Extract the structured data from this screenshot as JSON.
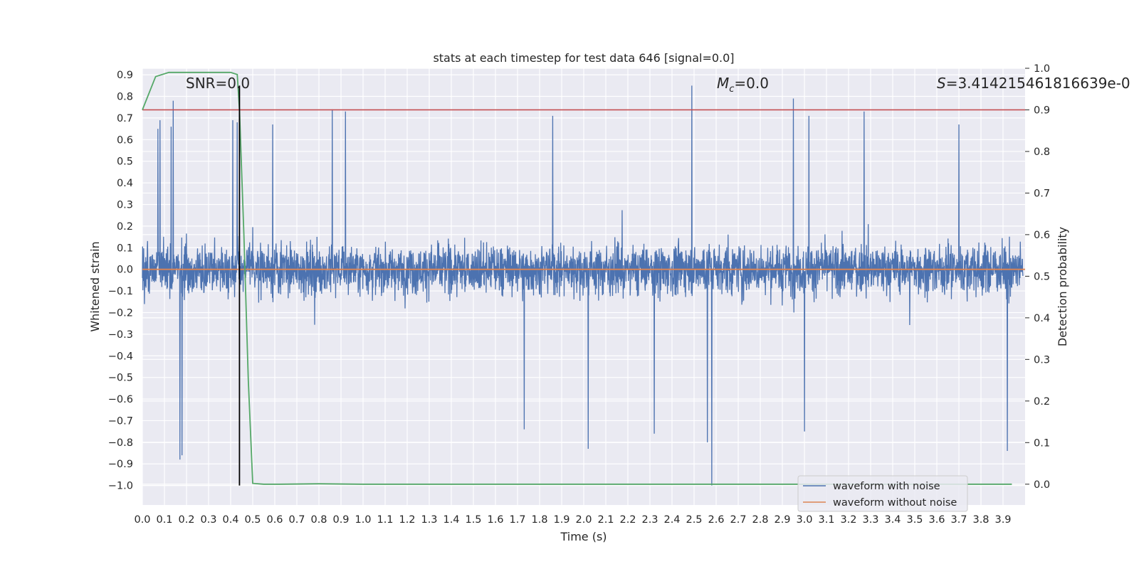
{
  "chart_data": {
    "type": "line",
    "title": "stats at each timestep for test data 646 [signal=0.0]",
    "xlabel": "Time (s)",
    "ylabel_left": "Whitened strain",
    "ylabel_right": "Detection probability",
    "xlim": [
      0.0,
      4.0
    ],
    "ylim_left": [
      -1.09,
      0.93
    ],
    "ylim_right": [
      -0.05,
      1.0
    ],
    "x_ticks": [
      "0.0",
      "0.1",
      "0.2",
      "0.3",
      "0.4",
      "0.5",
      "0.6",
      "0.7",
      "0.8",
      "0.9",
      "1.0",
      "1.1",
      "1.2",
      "1.3",
      "1.4",
      "1.5",
      "1.6",
      "1.7",
      "1.8",
      "1.9",
      "2.0",
      "2.1",
      "2.2",
      "2.3",
      "2.4",
      "2.5",
      "2.6",
      "2.7",
      "2.8",
      "2.9",
      "3.0",
      "3.1",
      "3.2",
      "3.3",
      "3.4",
      "3.5",
      "3.6",
      "3.7",
      "3.8",
      "3.9"
    ],
    "y_ticks_left": [
      "0.9",
      "0.8",
      "0.7",
      "0.6",
      "0.5",
      "0.4",
      "0.3",
      "0.2",
      "0.1",
      "0.0",
      "−0.1",
      "−0.2",
      "−0.3",
      "−0.4",
      "−0.5",
      "−0.6",
      "−0.7",
      "−0.8",
      "−0.9",
      "−1.0"
    ],
    "y_ticks_right": [
      "1.0",
      "0.9",
      "0.8",
      "0.7",
      "0.6",
      "0.5",
      "0.4",
      "0.3",
      "0.2",
      "0.1",
      "0.0"
    ],
    "grid": true,
    "legend_position": "lower-right",
    "annotations": {
      "snr": "SNR=0.0",
      "mc_symbol": "M",
      "mc_sub": "c",
      "mc_value": "=0.0",
      "s_symbol": "S",
      "s_value": "=3.414215461816639e-0"
    },
    "series": [
      {
        "name": "waveform with noise",
        "color": "#4c72b0",
        "description_values": "dense noise, mostly within [-0.5, 0.5] with spikes",
        "spikes": [
          {
            "x": 0.07,
            "y": 0.65
          },
          {
            "x": 0.08,
            "y": 0.69
          },
          {
            "x": 0.13,
            "y": 0.66
          },
          {
            "x": 0.14,
            "y": 0.78
          },
          {
            "x": 0.17,
            "y": -0.88
          },
          {
            "x": 0.18,
            "y": -0.86
          },
          {
            "x": 0.41,
            "y": 0.69
          },
          {
            "x": 0.43,
            "y": 0.68
          },
          {
            "x": 0.59,
            "y": 0.67
          },
          {
            "x": 0.86,
            "y": 0.74
          },
          {
            "x": 0.92,
            "y": 0.73
          },
          {
            "x": 1.86,
            "y": 0.71
          },
          {
            "x": 2.02,
            "y": -0.83
          },
          {
            "x": 2.49,
            "y": 0.85
          },
          {
            "x": 2.56,
            "y": -0.8
          },
          {
            "x": 2.58,
            "y": -1.0
          },
          {
            "x": 2.95,
            "y": 0.79
          },
          {
            "x": 3.0,
            "y": -0.75
          },
          {
            "x": 3.02,
            "y": 0.71
          },
          {
            "x": 3.27,
            "y": 0.73
          },
          {
            "x": 3.7,
            "y": 0.67
          },
          {
            "x": 3.92,
            "y": -0.84
          },
          {
            "x": 1.73,
            "y": -0.74
          },
          {
            "x": 2.32,
            "y": -0.76
          }
        ]
      },
      {
        "name": "waveform without noise",
        "color": "#dd8452",
        "x": [
          0.0,
          4.0
        ],
        "y": [
          0.0,
          0.0
        ]
      }
    ],
    "detection_probability": {
      "color": "#55a868",
      "x": [
        0.0,
        0.06,
        0.12,
        0.18,
        0.25,
        0.31,
        0.37,
        0.4,
        0.43,
        0.44,
        0.46,
        0.48,
        0.5,
        0.55,
        0.62,
        0.8,
        1.0,
        2.0,
        3.0,
        3.94
      ],
      "y": [
        0.9,
        0.98,
        0.99,
        0.99,
        0.99,
        0.99,
        0.99,
        0.99,
        0.985,
        0.9,
        0.6,
        0.25,
        0.002,
        0.0,
        0.0,
        0.001,
        0.0,
        0.0,
        0.0,
        0.0
      ]
    },
    "threshold": {
      "color": "#c44e52",
      "value": 0.9
    },
    "marker_time": {
      "color": "#000000",
      "x": 0.44
    }
  }
}
